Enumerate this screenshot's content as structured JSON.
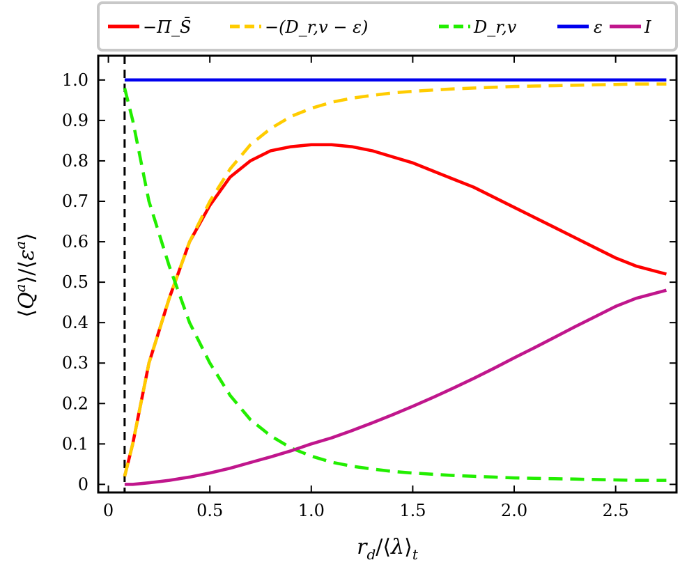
{
  "chart_data": {
    "type": "line",
    "xlabel": "r_d/⟨λ⟩_t",
    "ylabel": "⟨Q^a⟩/⟨ε^a⟩",
    "xlim": [
      -0.05,
      2.8
    ],
    "ylim": [
      -0.02,
      1.06
    ],
    "x_ticks": [
      0,
      0.5,
      1.0,
      1.5,
      2.0,
      2.5
    ],
    "x_tick_labels": [
      "0",
      "0.5",
      "1.0",
      "1.5",
      "2.0",
      "2.5"
    ],
    "y_ticks": [
      0,
      0.1,
      0.2,
      0.3,
      0.4,
      0.5,
      0.6,
      0.7,
      0.8,
      0.9,
      1.0
    ],
    "y_tick_labels": [
      "0",
      "0.1",
      "0.2",
      "0.3",
      "0.4",
      "0.5",
      "0.6",
      "0.7",
      "0.8",
      "0.9",
      "1.0"
    ],
    "vline_x": 0.08,
    "legend_placement": "top (above plot, boxed)",
    "x": [
      0.08,
      0.12,
      0.2,
      0.3,
      0.4,
      0.5,
      0.6,
      0.7,
      0.8,
      0.9,
      1.0,
      1.1,
      1.2,
      1.3,
      1.4,
      1.5,
      1.6,
      1.7,
      1.8,
      1.9,
      2.0,
      2.1,
      2.2,
      2.3,
      2.4,
      2.5,
      2.6,
      2.75
    ],
    "series": [
      {
        "name": "−Π_S̄",
        "color": "#ff0000",
        "dash": "solid",
        "values": [
          0.02,
          0.1,
          0.3,
          0.46,
          0.6,
          0.69,
          0.76,
          0.8,
          0.825,
          0.835,
          0.84,
          0.84,
          0.835,
          0.825,
          0.81,
          0.795,
          0.775,
          0.755,
          0.735,
          0.71,
          0.685,
          0.66,
          0.635,
          0.61,
          0.585,
          0.56,
          0.54,
          0.52
        ]
      },
      {
        "name": "−(D_r,v − ε)",
        "color": "#ffcc00",
        "dash": "dashed",
        "values": [
          0.02,
          0.1,
          0.3,
          0.46,
          0.6,
          0.7,
          0.78,
          0.84,
          0.88,
          0.91,
          0.93,
          0.945,
          0.955,
          0.962,
          0.968,
          0.972,
          0.975,
          0.978,
          0.98,
          0.982,
          0.984,
          0.985,
          0.986,
          0.987,
          0.988,
          0.989,
          0.99,
          0.99
        ]
      },
      {
        "name": "D_r,v",
        "color": "#22ee00",
        "dash": "dashed",
        "values": [
          0.98,
          0.9,
          0.7,
          0.54,
          0.4,
          0.3,
          0.22,
          0.16,
          0.12,
          0.09,
          0.07,
          0.055,
          0.045,
          0.038,
          0.032,
          0.028,
          0.025,
          0.022,
          0.02,
          0.018,
          0.016,
          0.015,
          0.014,
          0.013,
          0.012,
          0.011,
          0.01,
          0.01
        ]
      },
      {
        "name": "ε",
        "color": "#0000ee",
        "dash": "solid",
        "values": [
          1.0,
          1.0,
          1.0,
          1.0,
          1.0,
          1.0,
          1.0,
          1.0,
          1.0,
          1.0,
          1.0,
          1.0,
          1.0,
          1.0,
          1.0,
          1.0,
          1.0,
          1.0,
          1.0,
          1.0,
          1.0,
          1.0,
          1.0,
          1.0,
          1.0,
          1.0,
          1.0,
          1.0
        ]
      },
      {
        "name": "I",
        "color": "#c0168c",
        "dash": "solid",
        "values": [
          0.0,
          0.0,
          0.004,
          0.01,
          0.018,
          0.028,
          0.04,
          0.054,
          0.068,
          0.083,
          0.1,
          0.115,
          0.133,
          0.152,
          0.172,
          0.193,
          0.215,
          0.238,
          0.262,
          0.287,
          0.313,
          0.338,
          0.364,
          0.39,
          0.415,
          0.44,
          0.46,
          0.48
        ]
      }
    ]
  }
}
